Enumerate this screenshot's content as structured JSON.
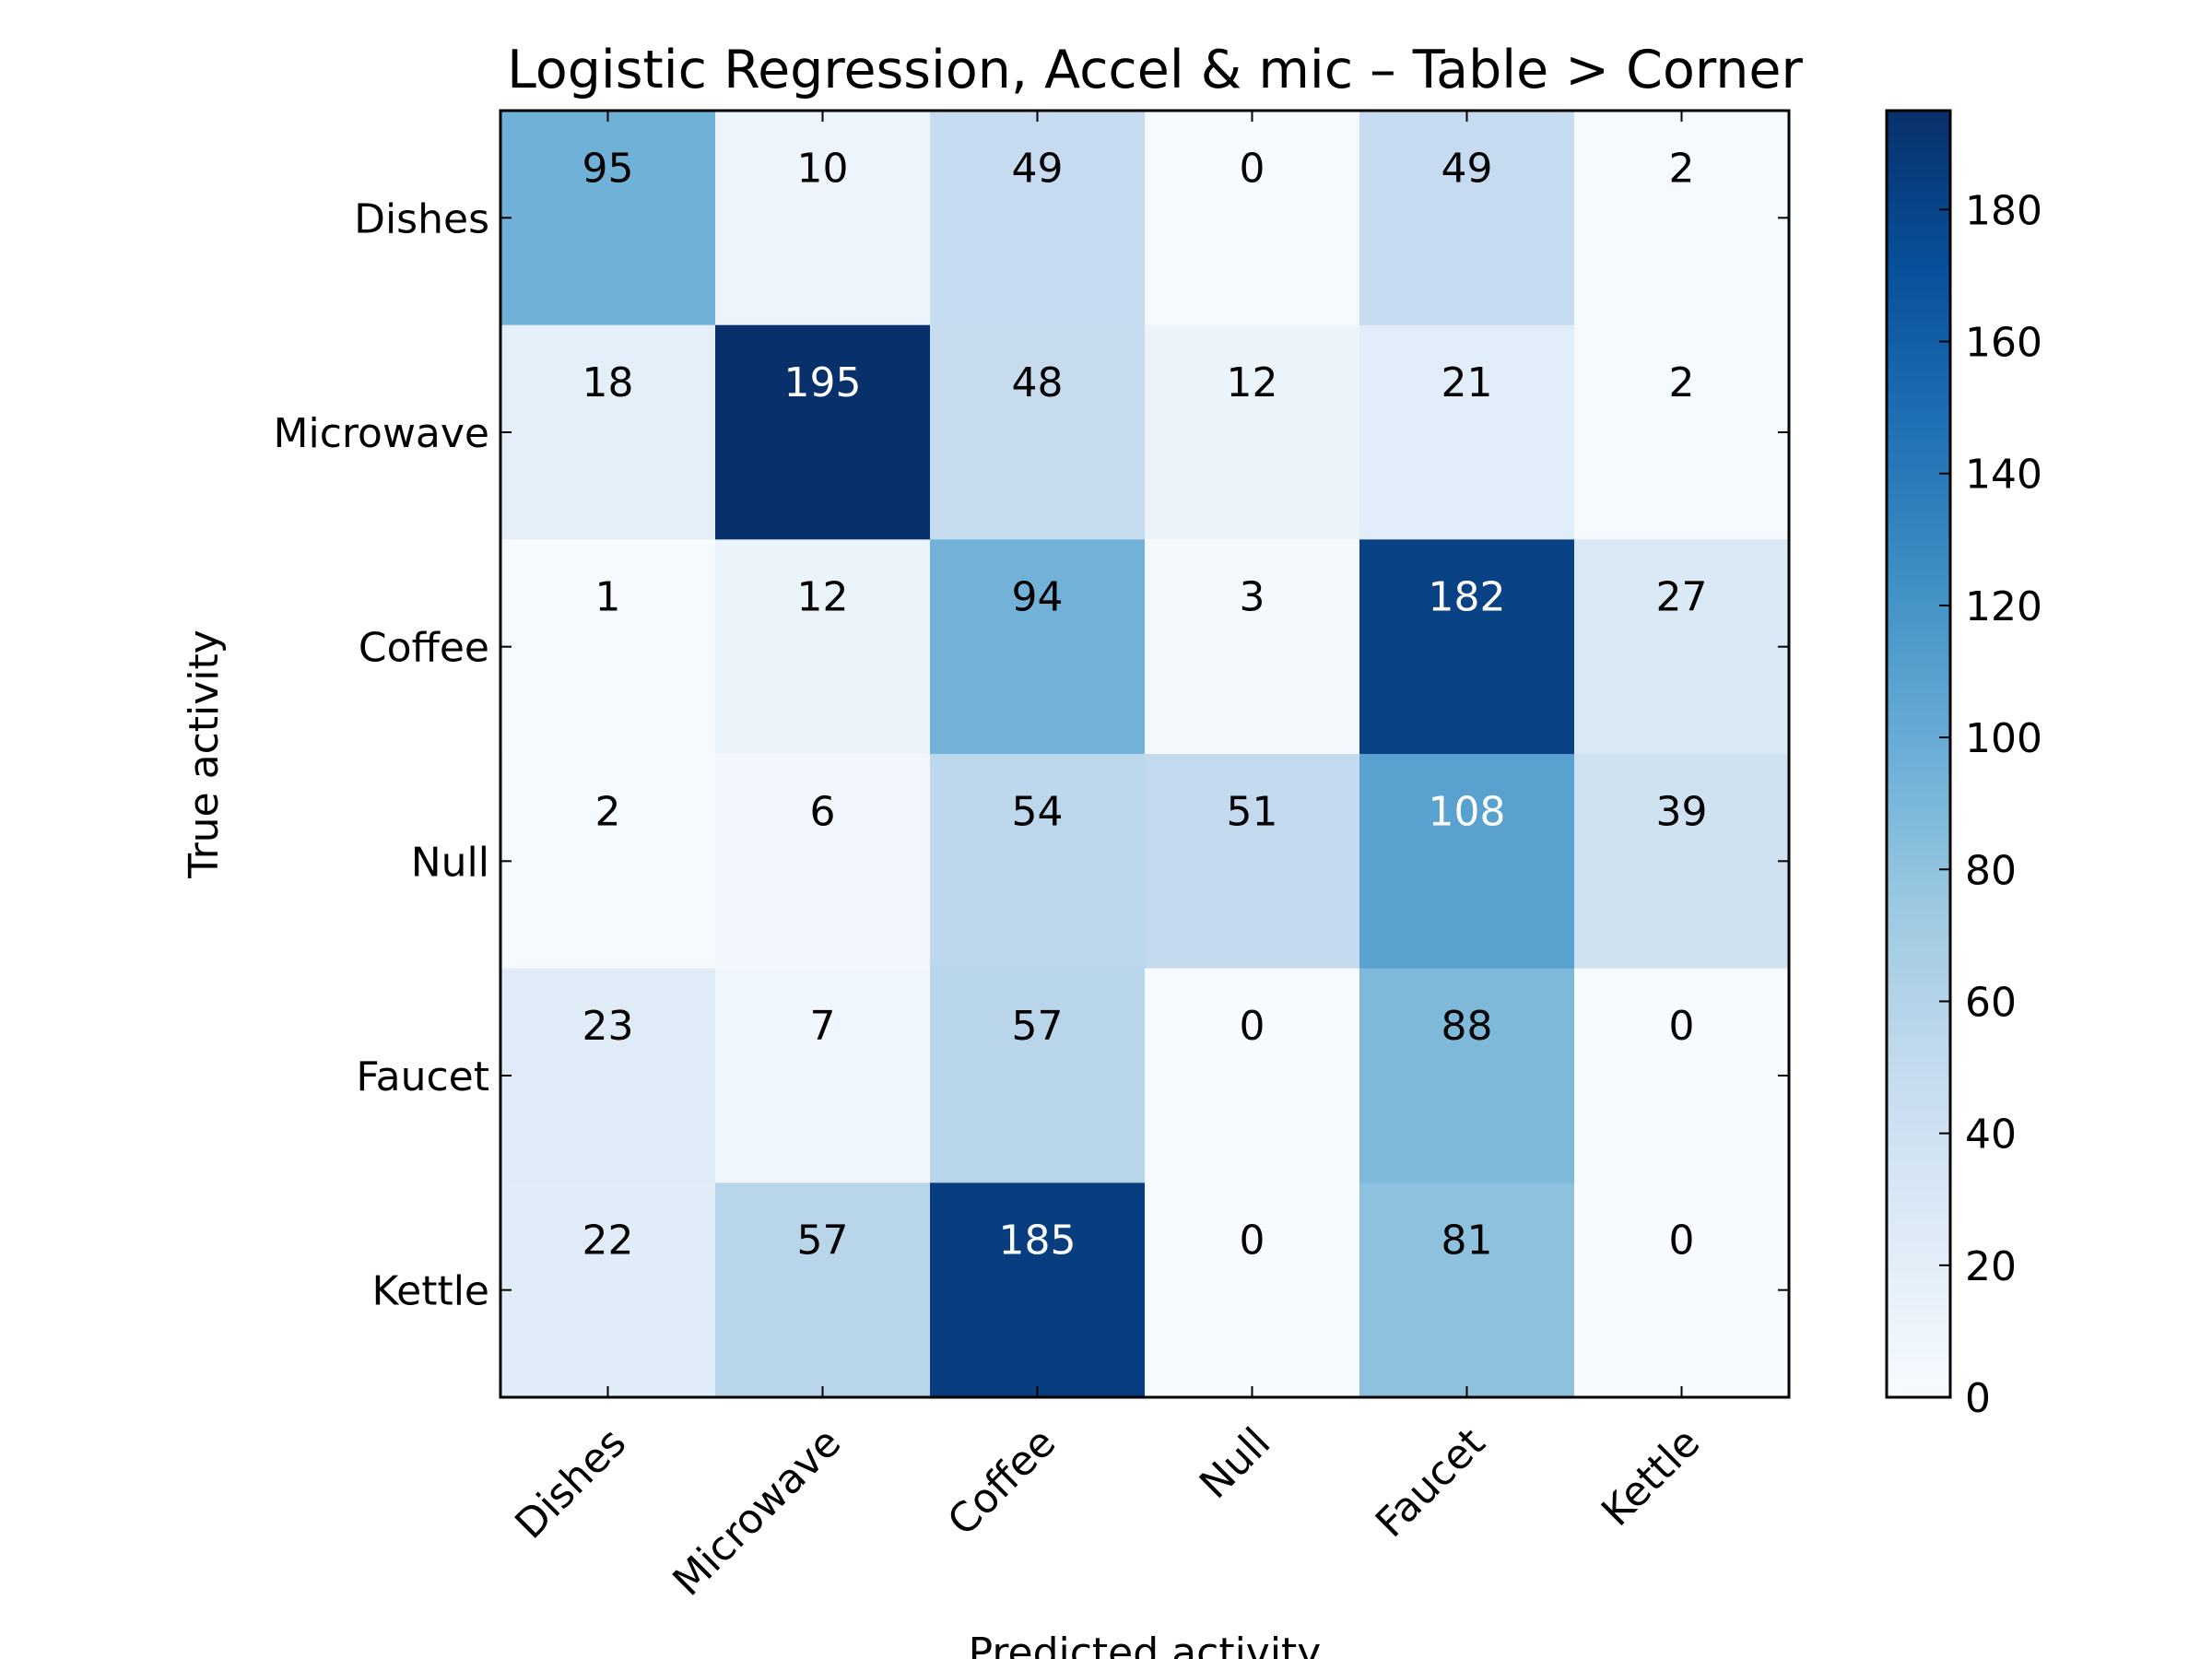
{
  "chart_data": {
    "type": "heatmap",
    "title": "Logistic Regression, Accel & mic – Table > Corner",
    "xlabel": "Predicted activity",
    "ylabel": "True activity",
    "x_categories": [
      "Dishes",
      "Microwave",
      "Coffee",
      "Null",
      "Faucet",
      "Kettle"
    ],
    "y_categories": [
      "Dishes",
      "Microwave",
      "Coffee",
      "Null",
      "Faucet",
      "Kettle"
    ],
    "values": [
      [
        95,
        10,
        49,
        0,
        49,
        2
      ],
      [
        18,
        195,
        48,
        12,
        21,
        2
      ],
      [
        1,
        12,
        94,
        3,
        182,
        27
      ],
      [
        2,
        6,
        54,
        51,
        108,
        39
      ],
      [
        23,
        7,
        57,
        0,
        88,
        0
      ],
      [
        22,
        57,
        185,
        0,
        81,
        0
      ]
    ],
    "colorbar": {
      "colormap": "Blues",
      "range": [
        0,
        195
      ],
      "ticks": [
        0,
        20,
        40,
        60,
        80,
        100,
        120,
        140,
        160,
        180
      ]
    },
    "grid": false,
    "legend": "none"
  }
}
